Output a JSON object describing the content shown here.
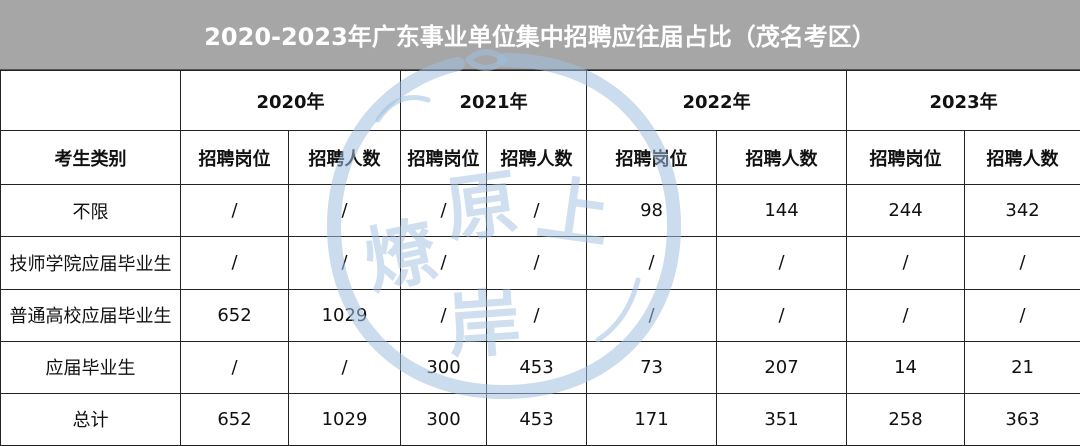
{
  "title": "2020-2023年广东事业单位集中招聘应往届占比（茂名考区）",
  "header": {
    "category_label": "考生类别",
    "years": [
      "2020年",
      "2021年",
      "2022年",
      "2023年"
    ],
    "sub": [
      "招聘岗位",
      "招聘人数",
      "招聘岗位",
      "招聘人数",
      "招聘岗位",
      "招聘人数",
      "招聘岗位",
      "招聘人数"
    ]
  },
  "rows": [
    {
      "label": "不限",
      "values": [
        "/",
        "/",
        "/",
        "/",
        "98",
        "144",
        "244",
        "342"
      ]
    },
    {
      "label": "技师学院应届毕业生",
      "values": [
        "/",
        "/",
        "/",
        "/",
        "/",
        "/",
        "/",
        "/"
      ]
    },
    {
      "label": "普通高校应届毕业生",
      "values": [
        "652",
        "1029",
        "/",
        "/",
        "/",
        "/",
        "/",
        "/"
      ]
    },
    {
      "label": "应届毕业生",
      "values": [
        "/",
        "/",
        "300",
        "453",
        "73",
        "207",
        "14",
        "21"
      ]
    },
    {
      "label": "总计",
      "values": [
        "652",
        "1029",
        "300",
        "453",
        "171",
        "351",
        "258",
        "363"
      ]
    }
  ],
  "watermark": {
    "text": "燎原上岸",
    "color": "#9fbfdf"
  }
}
